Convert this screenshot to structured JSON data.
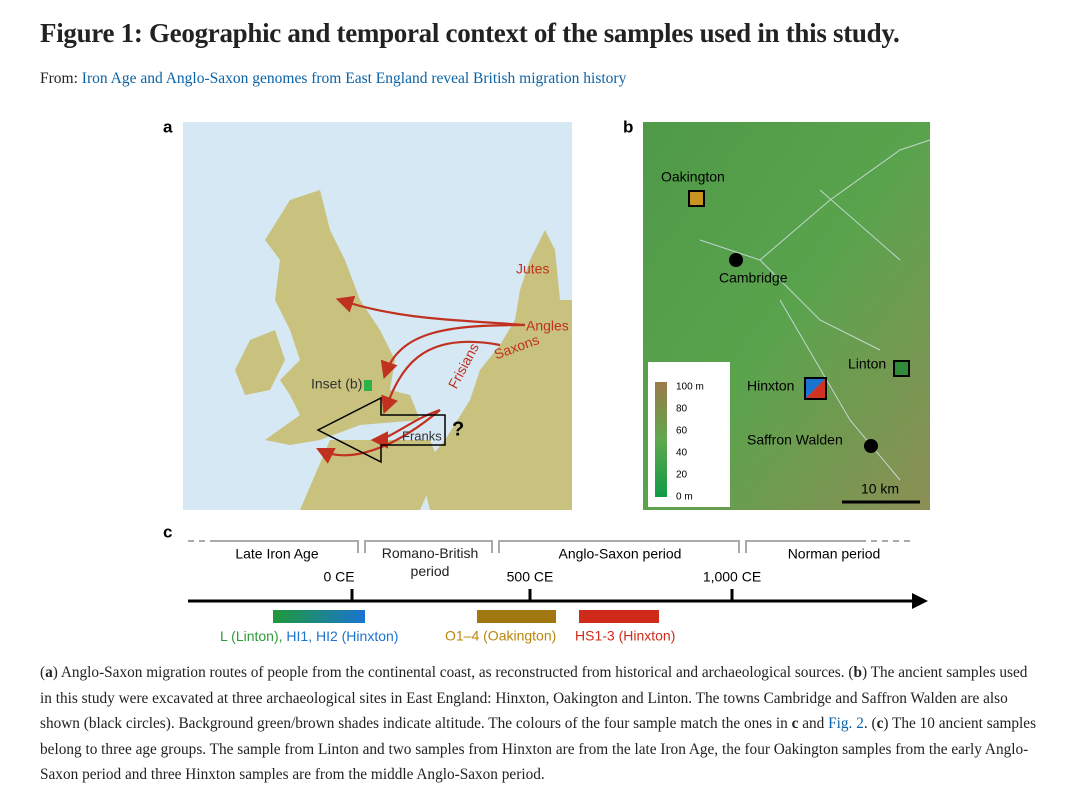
{
  "header": {
    "title": "Figure 1: Geographic and temporal context of the samples used in this study.",
    "from_label": "From:",
    "source_link": "Iron Age and Anglo-Saxon genomes from East England reveal British migration history"
  },
  "panel_a": {
    "label": "a",
    "map_labels": [
      "Jutes",
      "Angles",
      "Saxons",
      "Frisians",
      "Inset (b)",
      "Franks",
      "?"
    ]
  },
  "panel_b": {
    "label": "b",
    "places": [
      "Oakington",
      "Cambridge",
      "Linton",
      "Hinxton",
      "Saffron Walden"
    ],
    "altitude_legend": [
      "100 m",
      "80",
      "60",
      "40",
      "20",
      "0 m"
    ],
    "scale_bar": "10 km"
  },
  "panel_c": {
    "label": "c",
    "periods": [
      "Late Iron Age",
      "Romano-British period",
      "Anglo-Saxon period",
      "Norman period"
    ],
    "ticks": [
      "0 CE",
      "500 CE",
      "1,000 CE"
    ],
    "sample_groups": [
      "L (Linton),",
      "HI1, HI2 (Hinxton)",
      "O1–4 (Oakington)",
      "HS1-3 (Hinxton)"
    ]
  },
  "caption": [
    "(",
    "a",
    ") Anglo-Saxon migration routes of people from the continental coast, as reconstructed from historical and archaeological sources. (",
    "b",
    ") The ancient samples used in this study were excavated at three archaeological sites in East England: Hinxton, Oakington and Linton. The towns Cambridge and Saffron Walden are also shown (black circles). Background green/brown shades indicate altitude. The colours of the four sample match the ones in ",
    "c",
    " and ",
    "Fig. 2",
    ". (",
    "c",
    ") The 10 ancient samples belong to three age groups. The sample from Linton and two samples from Hinxton are from the late Iron Age, the four Oakington samples from the early Anglo-Saxon period and three Hinxton samples are from the middle Anglo-Saxon period."
  ]
}
